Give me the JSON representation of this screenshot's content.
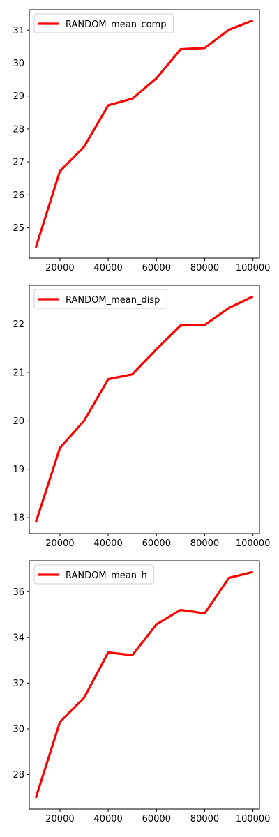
{
  "chart_data": [
    {
      "type": "line",
      "x": [
        10000,
        20000,
        30000,
        40000,
        50000,
        60000,
        70000,
        80000,
        90000,
        100000
      ],
      "series": [
        {
          "name": "RANDOM_mean_comp",
          "color": "#ff0000",
          "values": [
            24.4,
            26.72,
            27.46,
            28.72,
            28.92,
            29.54,
            30.42,
            30.46,
            31.01,
            31.3
          ]
        }
      ],
      "xlim": [
        7300,
        102700
      ],
      "ylim": [
        24.08,
        31.62
      ],
      "xticks": [
        20000,
        40000,
        60000,
        80000,
        100000
      ],
      "yticks": [
        25,
        26,
        27,
        28,
        29,
        30,
        31
      ],
      "legend": "top-left",
      "grid": false
    },
    {
      "type": "line",
      "x": [
        10000,
        20000,
        30000,
        40000,
        50000,
        60000,
        70000,
        80000,
        90000,
        100000
      ],
      "series": [
        {
          "name": "RANDOM_mean_disp",
          "color": "#ff0000",
          "values": [
            17.9,
            19.44,
            20.0,
            20.86,
            20.96,
            21.48,
            21.97,
            21.98,
            22.33,
            22.57
          ]
        }
      ],
      "xlim": [
        7300,
        102700
      ],
      "ylim": [
        17.67,
        22.8
      ],
      "xticks": [
        20000,
        40000,
        60000,
        80000,
        100000
      ],
      "yticks": [
        18,
        19,
        20,
        21,
        22
      ],
      "legend": "top-left",
      "grid": false
    },
    {
      "type": "line",
      "x": [
        10000,
        20000,
        30000,
        40000,
        50000,
        60000,
        70000,
        80000,
        90000,
        100000
      ],
      "series": [
        {
          "name": "RANDOM_mean_h",
          "color": "#ff0000",
          "values": [
            26.98,
            30.3,
            31.36,
            33.34,
            33.22,
            34.57,
            35.2,
            35.05,
            36.6,
            36.86
          ]
        }
      ],
      "xlim": [
        7300,
        102700
      ],
      "ylim": [
        26.49,
        37.35
      ],
      "xticks": [
        20000,
        40000,
        60000,
        80000,
        100000
      ],
      "yticks": [
        28,
        30,
        32,
        34,
        36
      ],
      "legend": "top-left",
      "grid": false
    }
  ]
}
